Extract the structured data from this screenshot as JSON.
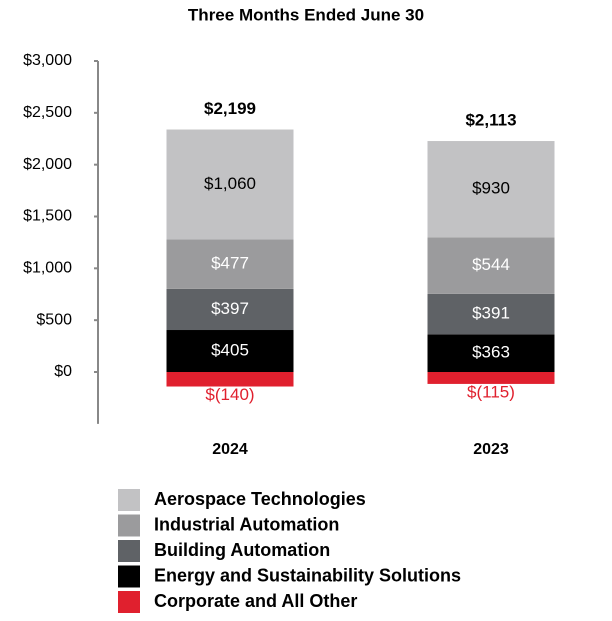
{
  "chart_data": {
    "type": "stacked_bar",
    "title": "Three Months Ended June 30",
    "categories": [
      "2024",
      "2023"
    ],
    "series": [
      {
        "name": "Aerospace Technologies",
        "color": "#c2c2c4",
        "label_color": "#000000",
        "values": [
          1060,
          930
        ],
        "value_labels": [
          "$1,060",
          "$930"
        ]
      },
      {
        "name": "Industrial Automation",
        "color": "#9b9b9d",
        "label_color": "#ffffff",
        "values": [
          477,
          544
        ],
        "value_labels": [
          "$477",
          "$544"
        ]
      },
      {
        "name": "Building Automation",
        "color": "#5f6266",
        "label_color": "#ffffff",
        "values": [
          397,
          391
        ],
        "value_labels": [
          "$397",
          "$391"
        ]
      },
      {
        "name": "Energy and Sustainability Solutions",
        "color": "#000000",
        "label_color": "#ffffff",
        "values": [
          405,
          363
        ],
        "value_labels": [
          "$405",
          "$363"
        ]
      },
      {
        "name": "Corporate and All Other",
        "color": "#e0202e",
        "label_color": "#e0202e",
        "values": [
          -140,
          -115
        ],
        "value_labels": [
          "$(140)",
          "$(115)"
        ]
      }
    ],
    "totals": {
      "values": [
        2199,
        2113
      ],
      "value_labels": [
        "$2,199",
        "$2,113"
      ]
    },
    "ylim": [
      -500,
      3000
    ],
    "yticks": [
      {
        "value": 0,
        "label": "$0"
      },
      {
        "value": 500,
        "label": "$500"
      },
      {
        "value": 1000,
        "label": "$1,000"
      },
      {
        "value": 1500,
        "label": "$1,500"
      },
      {
        "value": 2000,
        "label": "$2,000"
      },
      {
        "value": 2500,
        "label": "$2,500"
      },
      {
        "value": 3000,
        "label": "$3,000"
      }
    ],
    "grid": false
  }
}
